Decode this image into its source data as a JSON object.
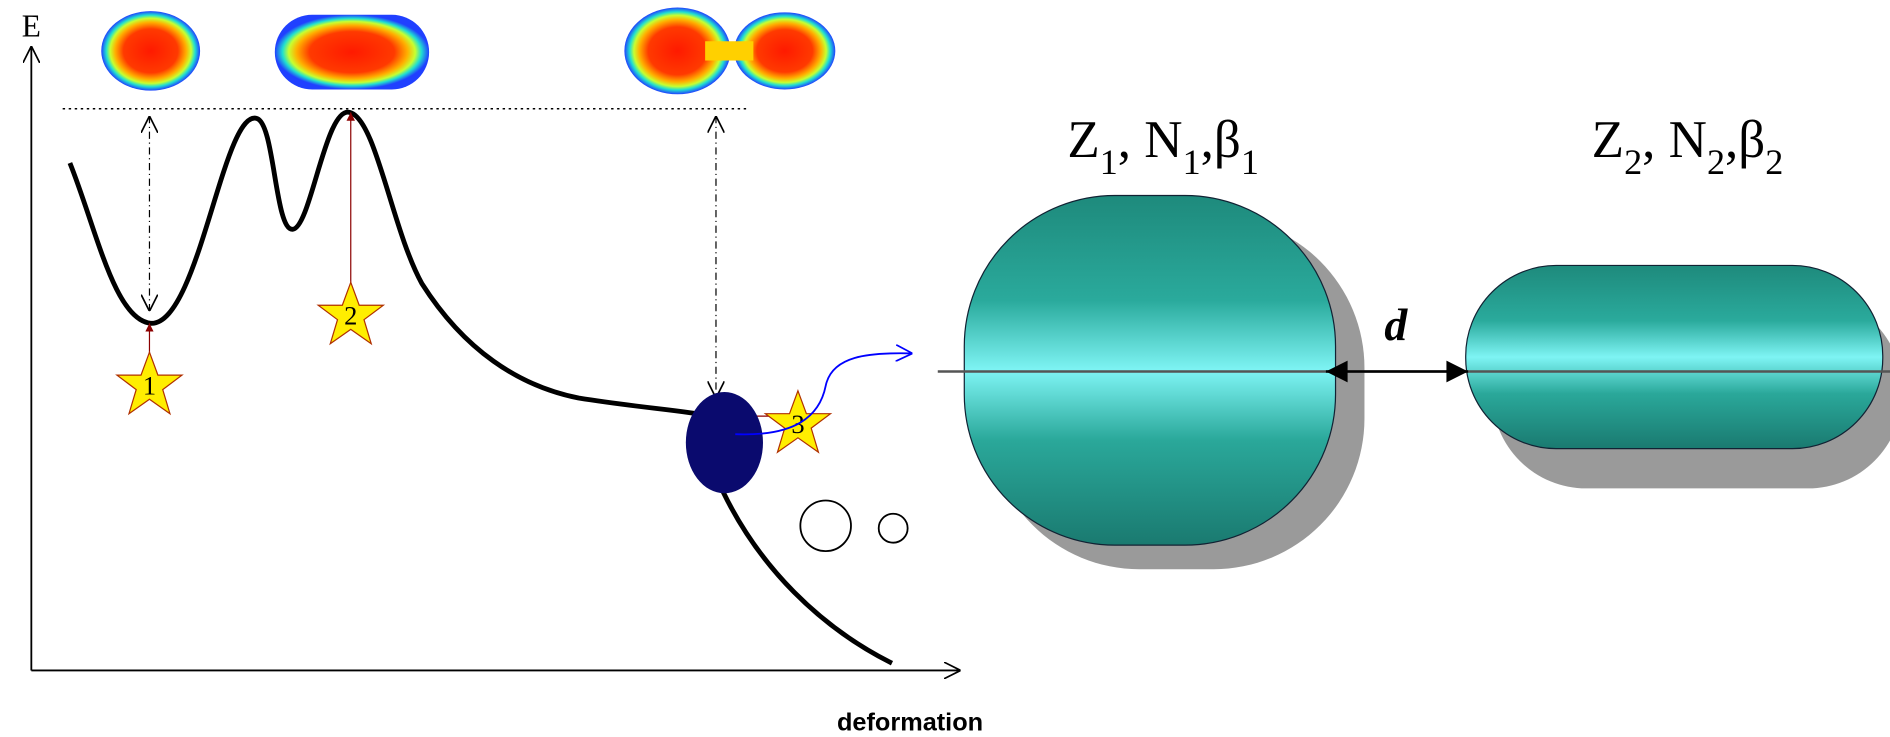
{
  "axes": {
    "y_label": "E",
    "x_label": "deformation"
  },
  "stars": [
    {
      "label": "1"
    },
    {
      "label": "2"
    },
    {
      "label": "3"
    }
  ],
  "fragments": [
    {
      "label": [
        "Z",
        "1",
        ", N",
        "1",
        ",β",
        "1"
      ]
    },
    {
      "label": [
        "Z",
        "2",
        ", N",
        "2",
        ",β",
        "2"
      ]
    }
  ],
  "distance_label": "d"
}
